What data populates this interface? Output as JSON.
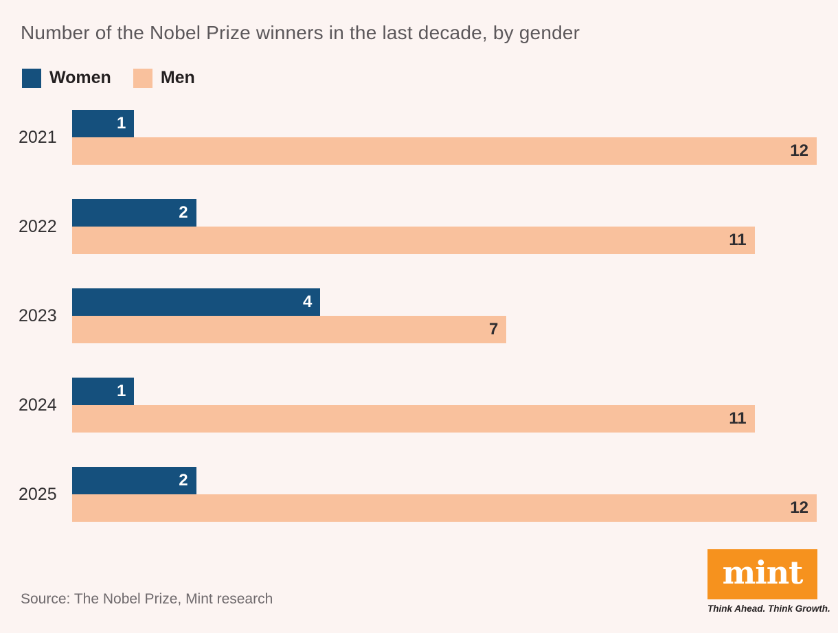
{
  "title": "Number of the Nobel Prize winners in the last decade, by gender",
  "legend": {
    "items": [
      {
        "label": "Women",
        "color": "#15507d"
      },
      {
        "label": "Men",
        "color": "#f9c19d"
      }
    ]
  },
  "chart_data": {
    "type": "bar",
    "orientation": "horizontal",
    "categories": [
      "2021",
      "2022",
      "2023",
      "2024",
      "2025"
    ],
    "series": [
      {
        "name": "Women",
        "color": "#15507d",
        "values": [
          1,
          2,
          4,
          1,
          2
        ]
      },
      {
        "name": "Men",
        "color": "#f9c19d",
        "values": [
          12,
          11,
          7,
          11,
          12
        ]
      }
    ],
    "xlim": [
      0,
      12
    ],
    "xlabel": "",
    "ylabel": "",
    "grid": false,
    "legend_position": "top-left",
    "value_labels": "inside-end"
  },
  "source": "Source: The Nobel Prize, Mint research",
  "branding": {
    "logo_text": "mint",
    "tagline": "Think Ahead. Think Growth.",
    "logo_bg_color": "#f6921e",
    "logo_text_color": "#ffffff"
  },
  "colors": {
    "background": "#fcf4f2",
    "title_text": "#5b575a",
    "value_label_on_women": "#ffffff",
    "value_label_on_men": "#2f2d30"
  }
}
